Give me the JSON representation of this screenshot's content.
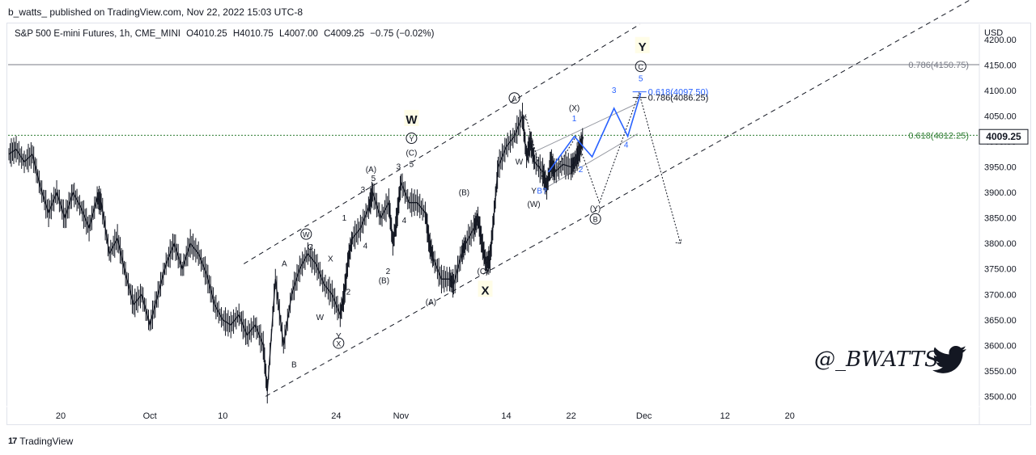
{
  "header": {
    "published_by": "b_watts_ published on TradingView.com, Nov 22, 2022 15:03 UTC-8"
  },
  "symbol": {
    "name": "S&P 500 E-mini Futures, 1h, CME_MINI",
    "open": "O4010.25",
    "high": "H4010.75",
    "low": "L4007.00",
    "close": "C4009.25",
    "change": "−0.75 (−0.02%)"
  },
  "axis": {
    "currency": "USD",
    "last_price": "4009.25",
    "last_price_color": "#131722"
  },
  "footer": {
    "brand": "TradingView",
    "logo_text": "17"
  },
  "watermark": {
    "text": "@_BWATTS_",
    "icon": "twitter-bird-icon"
  },
  "chart_data": {
    "type": "line",
    "interval": "1h",
    "ylabel": "USD",
    "ylim": [
      3480,
      4230
    ],
    "yticks": [
      3500,
      3550,
      3600,
      3650,
      3700,
      3750,
      3800,
      3850,
      3900,
      3950,
      4000,
      4050,
      4100,
      4150,
      4200
    ],
    "xticks": [
      {
        "label": "20",
        "t": 0
      },
      {
        "label": "Oct",
        "t": 11
      },
      {
        "label": "10",
        "t": 20
      },
      {
        "label": "24",
        "t": 34
      },
      {
        "label": "Nov",
        "t": 42
      },
      {
        "label": "14",
        "t": 55
      },
      {
        "label": "22",
        "t": 63
      },
      {
        "label": "Dec",
        "t": 72
      },
      {
        "label": "12",
        "t": 82
      },
      {
        "label": "20",
        "t": 90
      }
    ],
    "xlim": [
      -6.5,
      113
    ],
    "series": [
      {
        "values": [
          [
            -6.4,
            3975
          ],
          [
            -5.5,
            3985
          ],
          [
            -4.5,
            3960
          ],
          [
            -3.5,
            3975
          ],
          [
            -2.5,
            3910
          ],
          [
            -1.5,
            3860
          ],
          [
            -0.5,
            3900
          ],
          [
            0.5,
            3850
          ],
          [
            1.5,
            3900
          ],
          [
            2.5,
            3870
          ],
          [
            3.5,
            3830
          ],
          [
            4.5,
            3890
          ],
          [
            5.0,
            3880
          ],
          [
            6.0,
            3780
          ],
          [
            7.0,
            3810
          ],
          [
            8.0,
            3740
          ],
          [
            9.0,
            3680
          ],
          [
            10.0,
            3700
          ],
          [
            11.0,
            3640
          ],
          [
            12.0,
            3700
          ],
          [
            13.0,
            3760
          ],
          [
            14.0,
            3800
          ],
          [
            15.0,
            3750
          ],
          [
            16.0,
            3800
          ],
          [
            17.0,
            3780
          ],
          [
            18.0,
            3740
          ],
          [
            19.0,
            3680
          ],
          [
            20.0,
            3650
          ],
          [
            21.0,
            3640
          ],
          [
            22.0,
            3660
          ],
          [
            23.0,
            3620
          ],
          [
            24.0,
            3640
          ],
          [
            25.0,
            3600
          ],
          [
            25.5,
            3510
          ],
          [
            26.5,
            3730
          ],
          [
            27.5,
            3600
          ],
          [
            28.5,
            3700
          ],
          [
            29.5,
            3750
          ],
          [
            30.5,
            3780
          ],
          [
            31.5,
            3760
          ],
          [
            32.5,
            3720
          ],
          [
            33.5,
            3700
          ],
          [
            34.5,
            3660
          ],
          [
            35.0,
            3700
          ],
          [
            35.5,
            3770
          ],
          [
            36.0,
            3810
          ],
          [
            37.0,
            3830
          ],
          [
            38.0,
            3870
          ],
          [
            38.5,
            3900
          ],
          [
            39.5,
            3850
          ],
          [
            40.5,
            3880
          ],
          [
            41.0,
            3800
          ],
          [
            41.5,
            3850
          ],
          [
            42.0,
            3920
          ],
          [
            43.0,
            3880
          ],
          [
            44.0,
            3880
          ],
          [
            45.0,
            3860
          ],
          [
            45.5,
            3800
          ],
          [
            46.0,
            3770
          ],
          [
            47.0,
            3730
          ],
          [
            48.0,
            3730
          ],
          [
            48.5,
            3720
          ],
          [
            49.5,
            3780
          ],
          [
            50.0,
            3800
          ],
          [
            51.0,
            3830
          ],
          [
            51.5,
            3850
          ],
          [
            52.0,
            3800
          ],
          [
            52.5,
            3760
          ],
          [
            53.0,
            3770
          ],
          [
            53.5,
            3860
          ],
          [
            54.0,
            3950
          ],
          [
            55.0,
            3990
          ],
          [
            56.0,
            4010
          ],
          [
            57.0,
            4050
          ],
          [
            57.5,
            3970
          ],
          [
            58.0,
            4000
          ],
          [
            58.5,
            3960
          ],
          [
            59.5,
            3940
          ],
          [
            60.0,
            3910
          ],
          [
            60.5,
            3960
          ],
          [
            61.0,
            3940
          ],
          [
            62.0,
            3955
          ],
          [
            63.0,
            3950
          ],
          [
            63.5,
            3960
          ],
          [
            64.0,
            3980
          ],
          [
            64.5,
            4009
          ]
        ]
      }
    ],
    "lines": [
      {
        "from": [
          25.3,
          3500
        ],
        "to": [
          58.0,
          3792
        ],
        "style": "dashed",
        "color": "#131722"
      },
      {
        "from": [
          58.0,
          3792
        ],
        "to": [
          112.5,
          4280
        ],
        "style": "dashed",
        "color": "#131722"
      },
      {
        "from": [
          22.6,
          3760
        ],
        "to": [
          71.5,
          4230
        ],
        "style": "dashed",
        "color": "#131722"
      }
    ],
    "hlines": [
      {
        "y": 4150.75,
        "label": "0.786(4150.75)",
        "color": "#787b86",
        "style": "solid"
      },
      {
        "y": 4012.25,
        "label": "0.618(4012.25)",
        "color": "#2e7d32",
        "style": "dotted"
      }
    ],
    "fib_levels": [
      {
        "y": 4097.5,
        "label": "0.618(4097.50)",
        "color": "#2962ff"
      },
      {
        "y": 4086.25,
        "label": "0.786(4086.25)",
        "color": "#131722"
      }
    ],
    "projection_blue": [
      [
        60.2,
        3940
      ],
      [
        63.4,
        4010
      ],
      [
        65.6,
        3970
      ],
      [
        68.3,
        4065
      ],
      [
        70.0,
        4010
      ],
      [
        71.6,
        4095
      ]
    ],
    "projection_dotted": [
      [
        57.4,
        4050
      ],
      [
        59.8,
        3910
      ],
      [
        63.6,
        4010
      ],
      [
        66.5,
        3880
      ],
      [
        71.4,
        4095
      ],
      [
        76.5,
        3800
      ]
    ],
    "channel_gray": [
      {
        "from": [
          58.5,
          3980
        ],
        "to": [
          71.2,
          4075
        ]
      },
      {
        "from": [
          60.0,
          3910
        ],
        "to": [
          71.2,
          4015
        ]
      }
    ],
    "annotations": [
      {
        "text": "W",
        "x": 43.3,
        "y": 4035,
        "circled": false,
        "color": "#131722",
        "bold": true
      },
      {
        "text": "Y",
        "x": 43.3,
        "y": 4000,
        "circled": true,
        "color": "#131722"
      },
      {
        "text": "(C)",
        "x": 43.3,
        "y": 3972,
        "circled": false,
        "color": "#131722"
      },
      {
        "text": "5",
        "x": 43.3,
        "y": 3950,
        "circled": false,
        "color": "#131722"
      },
      {
        "text": "(A)",
        "x": 38.3,
        "y": 3940,
        "circled": false,
        "color": "#131722"
      },
      {
        "text": "5",
        "x": 38.6,
        "y": 3922,
        "circled": false,
        "color": "#131722"
      },
      {
        "text": "3",
        "x": 41.7,
        "y": 3945,
        "circled": false,
        "color": "#131722"
      },
      {
        "text": "3",
        "x": 37.3,
        "y": 3900,
        "circled": false,
        "color": "#131722"
      },
      {
        "text": "1",
        "x": 35.0,
        "y": 3845,
        "circled": false,
        "color": "#131722"
      },
      {
        "text": "W",
        "x": 30.3,
        "y": 3812,
        "circled": true,
        "color": "#131722"
      },
      {
        "text": "C",
        "x": 30.8,
        "y": 3788,
        "circled": false,
        "color": "#131722"
      },
      {
        "text": "A",
        "x": 27.6,
        "y": 3755,
        "circled": false,
        "color": "#131722"
      },
      {
        "text": "X",
        "x": 33.3,
        "y": 3765,
        "circled": false,
        "color": "#131722"
      },
      {
        "text": "4",
        "x": 37.6,
        "y": 3790,
        "circled": false,
        "color": "#131722"
      },
      {
        "text": "2",
        "x": 40.4,
        "y": 3740,
        "circled": false,
        "color": "#131722"
      },
      {
        "text": "(B)",
        "x": 39.9,
        "y": 3722,
        "circled": false,
        "color": "#131722"
      },
      {
        "text": "4",
        "x": 42.4,
        "y": 3840,
        "circled": false,
        "color": "#131722"
      },
      {
        "text": "2",
        "x": 35.5,
        "y": 3700,
        "circled": false,
        "color": "#131722"
      },
      {
        "text": "W",
        "x": 32.0,
        "y": 3650,
        "circled": false,
        "color": "#131722"
      },
      {
        "text": "Y",
        "x": 34.3,
        "y": 3613,
        "circled": false,
        "color": "#131722"
      },
      {
        "text": "X",
        "x": 34.3,
        "y": 3598,
        "circled": true,
        "color": "#131722"
      },
      {
        "text": "B",
        "x": 28.8,
        "y": 3557,
        "circled": false,
        "color": "#131722"
      },
      {
        "text": "(A)",
        "x": 45.7,
        "y": 3680,
        "circled": false,
        "color": "#131722"
      },
      {
        "text": "(B)",
        "x": 49.8,
        "y": 3895,
        "circled": false,
        "color": "#131722"
      },
      {
        "text": "(C)",
        "x": 52.1,
        "y": 3740,
        "circled": false,
        "color": "#131722"
      },
      {
        "text": "X",
        "x": 52.4,
        "y": 3700,
        "circled": false,
        "color": "#131722",
        "bold": true
      },
      {
        "text": "A",
        "x": 56.0,
        "y": 4079,
        "circled": true,
        "color": "#131722"
      },
      {
        "text": "X",
        "x": 57.2,
        "y": 4042,
        "circled": false,
        "color": "#131722"
      },
      {
        "text": "W",
        "x": 56.6,
        "y": 3955,
        "circled": false,
        "color": "#131722"
      },
      {
        "text": "Y",
        "x": 58.4,
        "y": 3898,
        "circled": false,
        "color": "#131722"
      },
      {
        "text": "B?",
        "x": 59.4,
        "y": 3898,
        "circled": false,
        "color": "#2962ff"
      },
      {
        "text": "(W)",
        "x": 58.4,
        "y": 3872,
        "circled": false,
        "color": "#131722"
      },
      {
        "text": "(X)",
        "x": 63.4,
        "y": 4060,
        "circled": false,
        "color": "#131722"
      },
      {
        "text": "1",
        "x": 63.4,
        "y": 4040,
        "circled": false,
        "color": "#2962ff"
      },
      {
        "text": "2",
        "x": 64.2,
        "y": 3940,
        "circled": false,
        "color": "#2962ff"
      },
      {
        "text": "3",
        "x": 68.3,
        "y": 4095,
        "circled": false,
        "color": "#2962ff"
      },
      {
        "text": "4",
        "x": 69.8,
        "y": 3988,
        "circled": false,
        "color": "#2962ff"
      },
      {
        "text": "5",
        "x": 71.6,
        "y": 4118,
        "circled": false,
        "color": "#2962ff"
      },
      {
        "text": "(Y)",
        "x": 66.0,
        "y": 3863,
        "circled": false,
        "color": "#131722"
      },
      {
        "text": "B",
        "x": 66.0,
        "y": 3842,
        "circled": true,
        "color": "#131722"
      },
      {
        "text": "C",
        "x": 71.6,
        "y": 4141,
        "circled": true,
        "color": "#131722"
      },
      {
        "text": "Y",
        "x": 71.8,
        "y": 4178,
        "circled": false,
        "color": "#131722",
        "bold": true
      }
    ]
  }
}
